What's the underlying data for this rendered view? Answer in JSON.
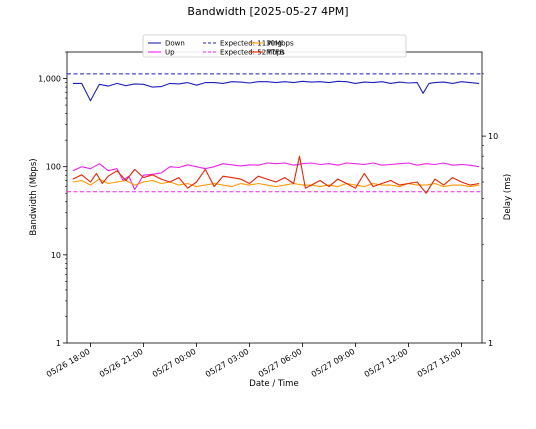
{
  "chart_data": {
    "type": "line",
    "title": "Bandwidth [2025-05-27 4PM]",
    "xlabel": "Date / Time",
    "ylabel": "Bandwidth (Mbps)",
    "y2label": "Delay (ms)",
    "y_scale": "log",
    "y2_scale": "log",
    "ylim": [
      1,
      2000
    ],
    "y2lim": [
      1,
      25.5
    ],
    "xlim": [
      "2025-05-26 16:40",
      "2025-05-27 16:10"
    ],
    "x_ticks": [
      "05/26 18:00",
      "05/26 21:00",
      "05/27 00:00",
      "05/27 03:00",
      "05/27 06:00",
      "05/27 09:00",
      "05/27 12:00",
      "05/27 15:00"
    ],
    "y_ticks": [
      "1",
      "10",
      "100",
      "1,000"
    ],
    "y2_ticks": [
      "1",
      "10"
    ],
    "grid": false,
    "legend_position": "top-center",
    "legend": [
      "Down",
      "Up",
      "Expected: 1130Mbps",
      "Expected: 52Mbps",
      "Ping",
      "TTFB"
    ],
    "series": [
      {
        "name": "Down",
        "axis": "left",
        "color": "#1f1fbf",
        "style": "solid",
        "x": [
          "2025-05-26 17:00",
          "2025-05-26 17:30",
          "2025-05-26 18:00",
          "2025-05-26 18:15",
          "2025-05-26 18:30",
          "2025-05-26 19:00",
          "2025-05-26 19:30",
          "2025-05-26 20:00",
          "2025-05-26 20:30",
          "2025-05-26 21:00",
          "2025-05-26 21:30",
          "2025-05-26 22:00",
          "2025-05-26 22:30",
          "2025-05-26 23:00",
          "2025-05-26 23:30",
          "2025-05-27 00:00",
          "2025-05-27 00:30",
          "2025-05-27 01:00",
          "2025-05-27 01:30",
          "2025-05-27 02:00",
          "2025-05-27 02:30",
          "2025-05-27 03:00",
          "2025-05-27 03:30",
          "2025-05-27 04:00",
          "2025-05-27 04:30",
          "2025-05-27 05:00",
          "2025-05-27 05:30",
          "2025-05-27 06:00",
          "2025-05-27 06:30",
          "2025-05-27 07:00",
          "2025-05-27 07:30",
          "2025-05-27 08:00",
          "2025-05-27 08:30",
          "2025-05-27 09:00",
          "2025-05-27 09:30",
          "2025-05-27 10:00",
          "2025-05-27 10:30",
          "2025-05-27 11:00",
          "2025-05-27 11:30",
          "2025-05-27 12:00",
          "2025-05-27 12:30",
          "2025-05-27 12:50",
          "2025-05-27 13:10",
          "2025-05-27 13:30",
          "2025-05-27 14:00",
          "2025-05-27 14:30",
          "2025-05-27 15:00",
          "2025-05-27 15:30",
          "2025-05-27 16:00"
        ],
        "y": [
          880,
          880,
          560,
          700,
          860,
          820,
          880,
          830,
          870,
          860,
          800,
          810,
          880,
          870,
          900,
          840,
          900,
          900,
          880,
          920,
          910,
          890,
          920,
          920,
          900,
          920,
          900,
          930,
          910,
          920,
          900,
          930,
          920,
          880,
          910,
          900,
          920,
          880,
          910,
          890,
          900,
          680,
          880,
          900,
          910,
          880,
          920,
          900,
          880
        ]
      },
      {
        "name": "Up",
        "axis": "left",
        "color": "#ee22ee",
        "style": "solid",
        "x": [
          "2025-05-26 17:00",
          "2025-05-26 17:30",
          "2025-05-26 18:00",
          "2025-05-26 18:30",
          "2025-05-26 19:00",
          "2025-05-26 19:30",
          "2025-05-26 19:50",
          "2025-05-26 20:10",
          "2025-05-26 20:30",
          "2025-05-26 21:00",
          "2025-05-26 21:30",
          "2025-05-26 22:00",
          "2025-05-26 22:30",
          "2025-05-26 23:00",
          "2025-05-26 23:30",
          "2025-05-27 00:00",
          "2025-05-27 00:30",
          "2025-05-27 01:00",
          "2025-05-27 01:30",
          "2025-05-27 02:00",
          "2025-05-27 02:30",
          "2025-05-27 03:00",
          "2025-05-27 03:30",
          "2025-05-27 04:00",
          "2025-05-27 04:30",
          "2025-05-27 05:00",
          "2025-05-27 05:30",
          "2025-05-27 06:00",
          "2025-05-27 06:30",
          "2025-05-27 07:00",
          "2025-05-27 07:30",
          "2025-05-27 08:00",
          "2025-05-27 08:30",
          "2025-05-27 09:00",
          "2025-05-27 09:30",
          "2025-05-27 10:00",
          "2025-05-27 10:30",
          "2025-05-27 11:00",
          "2025-05-27 11:30",
          "2025-05-27 12:00",
          "2025-05-27 12:30",
          "2025-05-27 13:00",
          "2025-05-27 13:30",
          "2025-05-27 14:00",
          "2025-05-27 14:30",
          "2025-05-27 15:00",
          "2025-05-27 15:30",
          "2025-05-27 16:00"
        ],
        "y": [
          90,
          100,
          95,
          108,
          90,
          95,
          70,
          78,
          55,
          80,
          82,
          85,
          100,
          98,
          105,
          100,
          95,
          100,
          108,
          105,
          102,
          105,
          104,
          110,
          108,
          110,
          104,
          108,
          110,
          106,
          108,
          104,
          110,
          108,
          106,
          110,
          104,
          106,
          108,
          110,
          104,
          108,
          106,
          110,
          104,
          106,
          104,
          100
        ]
      },
      {
        "name": "Expected: 1130Mbps",
        "axis": "left",
        "color": "#1f1fbf",
        "style": "dashed",
        "y": 1130
      },
      {
        "name": "Expected: 52Mbps",
        "axis": "left",
        "color": "#ee22ee",
        "style": "dashed",
        "y": 52
      },
      {
        "name": "Ping",
        "axis": "right",
        "color": "#ff9900",
        "style": "solid",
        "x": [
          "2025-05-26 17:00",
          "2025-05-26 17:30",
          "2025-05-26 18:00",
          "2025-05-26 18:30",
          "2025-05-26 19:00",
          "2025-05-26 19:30",
          "2025-05-26 20:00",
          "2025-05-26 20:30",
          "2025-05-26 21:00",
          "2025-05-26 21:30",
          "2025-05-26 22:00",
          "2025-05-26 22:30",
          "2025-05-26 23:00",
          "2025-05-26 23:30",
          "2025-05-27 00:00",
          "2025-05-27 00:30",
          "2025-05-27 01:00",
          "2025-05-27 01:30",
          "2025-05-27 02:00",
          "2025-05-27 02:30",
          "2025-05-27 03:00",
          "2025-05-27 03:30",
          "2025-05-27 04:00",
          "2025-05-27 04:30",
          "2025-05-27 05:00",
          "2025-05-27 05:30",
          "2025-05-27 06:00",
          "2025-05-27 06:30",
          "2025-05-27 07:00",
          "2025-05-27 07:30",
          "2025-05-27 08:00",
          "2025-05-27 08:30",
          "2025-05-27 09:00",
          "2025-05-27 09:30",
          "2025-05-27 10:00",
          "2025-05-27 10:30",
          "2025-05-27 11:00",
          "2025-05-27 11:30",
          "2025-05-27 12:00",
          "2025-05-27 12:30",
          "2025-05-27 13:00",
          "2025-05-27 13:30",
          "2025-05-27 14:00",
          "2025-05-27 14:30",
          "2025-05-27 15:00",
          "2025-05-27 15:30",
          "2025-05-27 16:00"
        ],
        "y": [
          6.0,
          6.1,
          5.8,
          6.2,
          5.9,
          6.0,
          6.1,
          5.8,
          6.0,
          6.1,
          5.9,
          6.0,
          5.8,
          5.9,
          5.7,
          5.8,
          5.9,
          5.8,
          5.7,
          5.9,
          5.8,
          5.9,
          5.8,
          5.7,
          5.8,
          5.9,
          5.8,
          5.8,
          5.7,
          5.8,
          5.7,
          5.9,
          5.8,
          5.7,
          5.9,
          5.8,
          5.8,
          5.7,
          5.9,
          5.8,
          5.8,
          5.9,
          5.7,
          5.8,
          5.8,
          5.7,
          5.8
        ]
      },
      {
        "name": "TTFB",
        "axis": "right",
        "color": "#ee2200",
        "style": "solid",
        "x": [
          "2025-05-26 17:00",
          "2025-05-26 17:30",
          "2025-05-26 18:00",
          "2025-05-26 18:20",
          "2025-05-26 18:40",
          "2025-05-26 19:00",
          "2025-05-26 19:30",
          "2025-05-26 20:00",
          "2025-05-26 20:30",
          "2025-05-26 21:00",
          "2025-05-26 21:30",
          "2025-05-26 22:00",
          "2025-05-26 22:30",
          "2025-05-26 23:00",
          "2025-05-26 23:30",
          "2025-05-27 00:00",
          "2025-05-27 00:30",
          "2025-05-27 01:00",
          "2025-05-27 01:30",
          "2025-05-27 02:00",
          "2025-05-27 02:30",
          "2025-05-27 03:00",
          "2025-05-27 03:30",
          "2025-05-27 04:00",
          "2025-05-27 04:30",
          "2025-05-27 05:00",
          "2025-05-27 05:30",
          "2025-05-27 05:50",
          "2025-05-27 06:10",
          "2025-05-27 06:30",
          "2025-05-27 07:00",
          "2025-05-27 07:30",
          "2025-05-27 08:00",
          "2025-05-27 08:30",
          "2025-05-27 09:00",
          "2025-05-27 09:30",
          "2025-05-27 10:00",
          "2025-05-27 10:30",
          "2025-05-27 11:00",
          "2025-05-27 11:30",
          "2025-05-27 12:00",
          "2025-05-27 12:30",
          "2025-05-27 13:00",
          "2025-05-27 13:30",
          "2025-05-27 14:00",
          "2025-05-27 14:30",
          "2025-05-27 15:00",
          "2025-05-27 15:30",
          "2025-05-27 16:00"
        ],
        "y": [
          6.2,
          6.5,
          6.0,
          6.6,
          5.9,
          6.4,
          6.8,
          6.1,
          6.9,
          6.3,
          6.5,
          6.2,
          6.0,
          6.3,
          5.6,
          6.0,
          6.9,
          5.7,
          6.4,
          6.3,
          6.2,
          5.9,
          6.4,
          6.2,
          6.0,
          6.3,
          5.9,
          8.0,
          5.6,
          5.8,
          6.1,
          5.7,
          6.2,
          5.9,
          5.6,
          6.6,
          5.7,
          5.9,
          6.1,
          5.8,
          5.9,
          6.0,
          5.3,
          6.2,
          5.8,
          6.3,
          6.0,
          5.8,
          5.9
        ]
      }
    ]
  }
}
